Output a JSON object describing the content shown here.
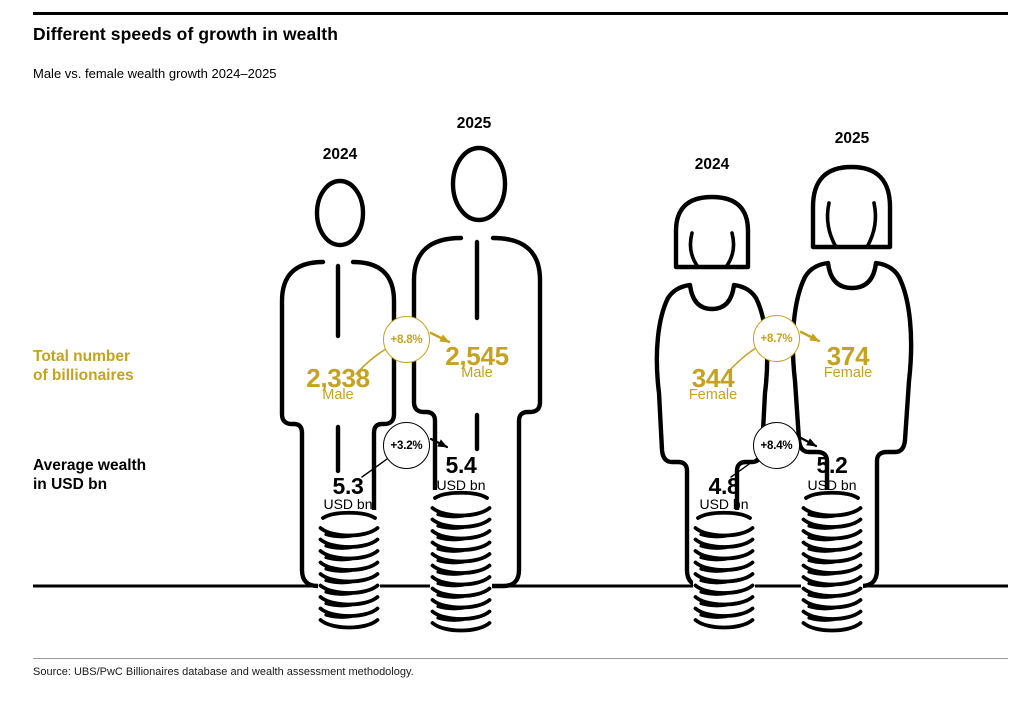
{
  "page": {
    "title": "Different speeds of growth in wealth",
    "subtitle": "Male vs. female wealth growth 2024–2025",
    "source": "Source: UBS/PwC Billionaires database and wealth assessment methodology."
  },
  "metric_labels": {
    "billionaires": {
      "line1": "Total number",
      "line2": "of billionaires"
    },
    "wealth": {
      "line1": "Average wealth",
      "line2": "in USD bn"
    }
  },
  "colors": {
    "gold": "#C5A21F",
    "black": "#000000"
  },
  "chart_data": {
    "type": "pictogram",
    "title": "Different speeds of growth in wealth",
    "subtitle": "Male vs. female wealth growth 2024–2025",
    "unit": "USD bn",
    "metrics": [
      "Total number of billionaires",
      "Average wealth in USD bn"
    ],
    "groups": [
      {
        "gender": "Male",
        "years": [
          {
            "year": "2024",
            "billionaires": "2,338",
            "billionaires_value": 2338,
            "avg_wealth": "5.3",
            "avg_wealth_value": 5.3
          },
          {
            "year": "2025",
            "billionaires": "2,545",
            "billionaires_value": 2545,
            "avg_wealth": "5.4",
            "avg_wealth_value": 5.4
          }
        ],
        "billionaires_growth": "+8.8%",
        "wealth_growth": "+3.2%"
      },
      {
        "gender": "Female",
        "years": [
          {
            "year": "2024",
            "billionaires": "344",
            "billionaires_value": 344,
            "avg_wealth": "4.8",
            "avg_wealth_value": 4.8
          },
          {
            "year": "2025",
            "billionaires": "374",
            "billionaires_value": 374,
            "avg_wealth": "5.2",
            "avg_wealth_value": 5.2
          }
        ],
        "billionaires_growth": "+8.7%",
        "wealth_growth": "+8.4%"
      }
    ]
  }
}
